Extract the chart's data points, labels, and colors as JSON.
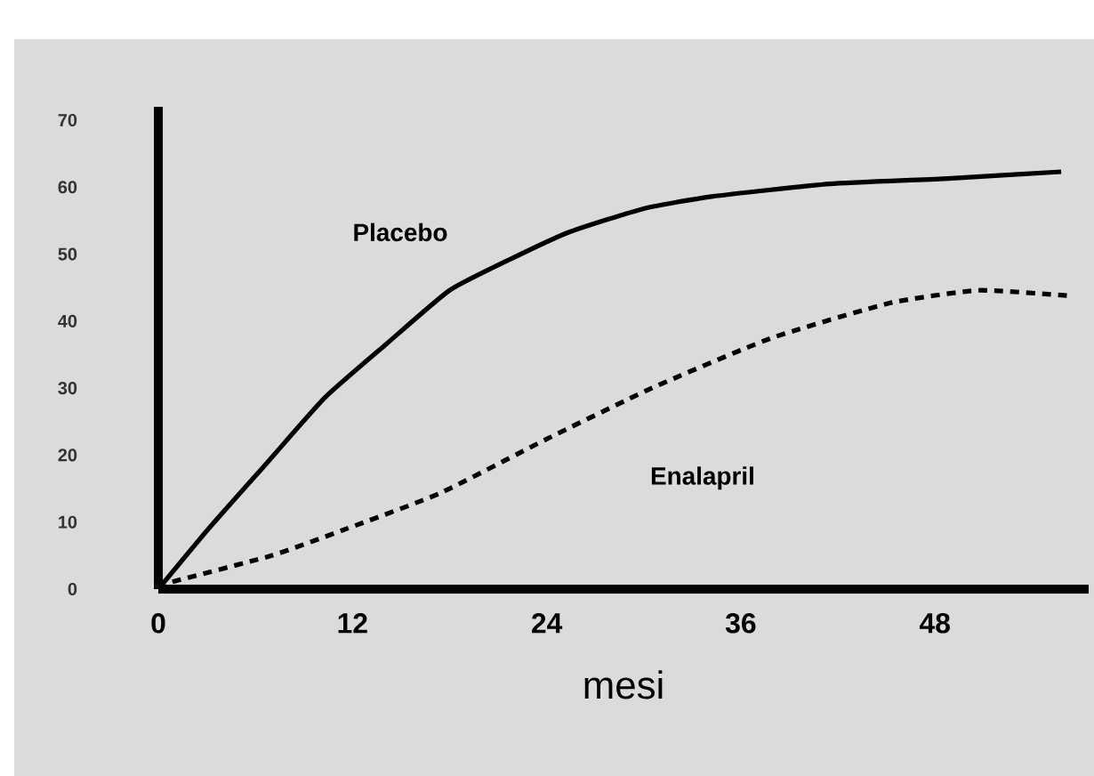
{
  "chart_data": {
    "type": "line",
    "xlabel": "mesi",
    "x": [
      0,
      3.1,
      6.7,
      10.3,
      14.1,
      18.0,
      21.8,
      25.4,
      30.0,
      34.2,
      41.5,
      48.8,
      55.8
    ],
    "series": [
      {
        "name": "Placebo",
        "color": "#000000",
        "line_style": "solid",
        "values": [
          0,
          9.0,
          18.8,
          28.6,
          36.6,
          44.6,
          49.3,
          53.3,
          56.8,
          58.6,
          60.5,
          61.3,
          62.3
        ]
      },
      {
        "name": "Enalapril",
        "color": "#000000",
        "line_style": "dashed",
        "x": [
          0,
          0.9,
          7.0,
          11.4,
          17.4,
          24.0,
          30.5,
          37.8,
          45.2,
          50.7,
          56.2
        ],
        "values": [
          0,
          1.1,
          5.0,
          8.8,
          14.3,
          22.4,
          30.0,
          37.4,
          42.7,
          44.6,
          43.8
        ]
      }
    ],
    "xlim": [
      0,
      57.5
    ],
    "ylim": [
      0,
      72
    ],
    "xticks": [
      0,
      12,
      24,
      36,
      48
    ],
    "yticks": [
      0,
      10,
      20,
      30,
      40,
      50,
      60,
      70
    ],
    "grid": false,
    "marker": "none"
  }
}
